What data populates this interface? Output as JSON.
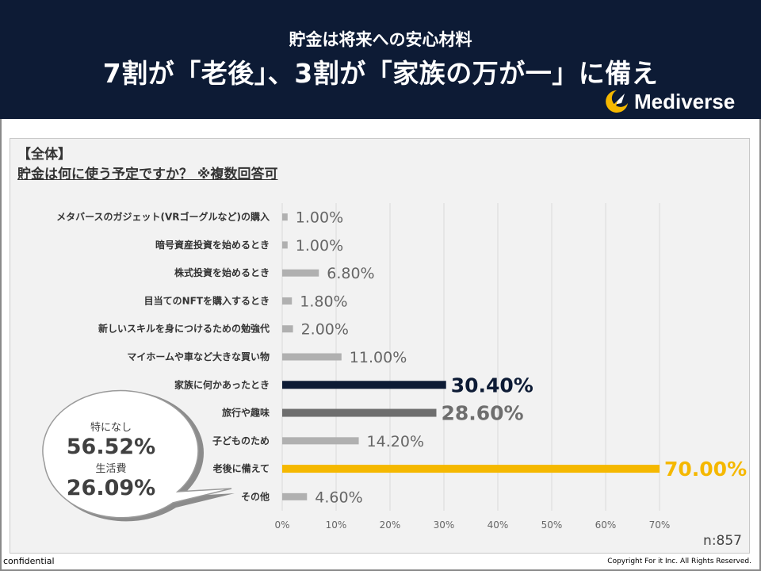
{
  "header": {
    "subtitle": "貯金は将来への安心材料",
    "title": "7割が「老後」、3割が「家族の万が一」に備え",
    "logo_text": "Mediverse",
    "background_color": "#0d1b35",
    "logo_accent_color": "#f5b800"
  },
  "section_label": "【全体】",
  "question": "貯金は何に使う予定ですか？ ※複数回答可",
  "sample_size": "n:857",
  "callout": {
    "label1": "特になし",
    "value1": "56.52%",
    "label2": "生活費",
    "value2": "26.09%"
  },
  "footer": {
    "confidential": "confidential",
    "copyright": "Copyright For it Inc. All Rights Reserved."
  },
  "chart_data": {
    "type": "bar",
    "orientation": "horizontal",
    "categories": [
      "メタバースのガジェット(VRゴーグルなど)の購入",
      "暗号資産投資を始めるとき",
      "株式投資を始めるとき",
      "目当てのNFTを購入するとき",
      "新しいスキルを身につけるための勉強代",
      "マイホームや車など大きな買い物",
      "家族に何かあったとき",
      "旅行や趣味",
      "子どものため",
      "老後に備えて",
      "その他"
    ],
    "values": [
      1.0,
      1.0,
      6.8,
      1.8,
      2.0,
      11.0,
      30.4,
      28.6,
      14.2,
      70.0,
      4.6
    ],
    "value_labels": [
      "1.00%",
      "1.00%",
      "6.80%",
      "1.80%",
      "2.00%",
      "11.00%",
      "30.40%",
      "28.60%",
      "14.20%",
      "70.00%",
      "4.60%"
    ],
    "highlight": [
      "normal",
      "normal",
      "normal",
      "normal",
      "normal",
      "normal",
      "first",
      "second",
      "normal",
      "top",
      "normal"
    ],
    "colors": {
      "normal": "#b0b0b0",
      "first": "#0d1b35",
      "second": "#6e6e6e",
      "top": "#f5b800"
    },
    "xlim": [
      0,
      70
    ],
    "xticks": [
      "0%",
      "10%",
      "20%",
      "30%",
      "40%",
      "50%",
      "60%",
      "70%"
    ],
    "xtick_values": [
      0,
      10,
      20,
      30,
      40,
      50,
      60,
      70
    ],
    "grid": true,
    "legend": "none"
  }
}
